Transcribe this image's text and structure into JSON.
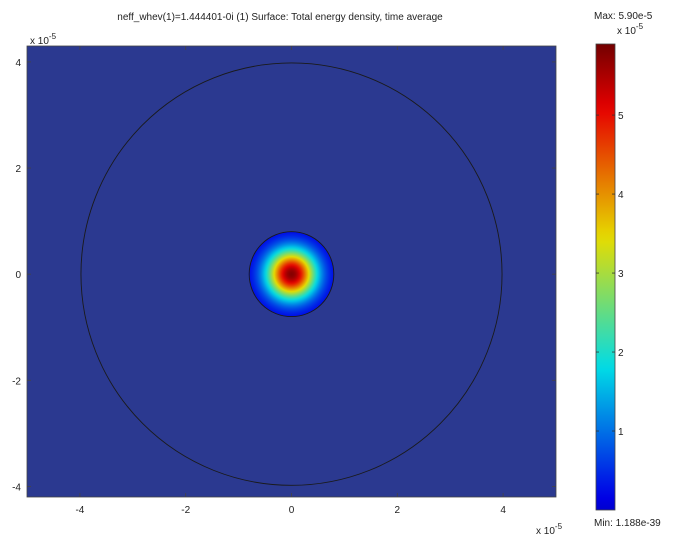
{
  "chart_data": {
    "type": "heatmap",
    "title": "neff_whev(1)=1.444401-0i (1)   Surface: Total energy density, time average",
    "x_exponent_label": "x 10",
    "x_exponent_power": "-5",
    "y_exponent_label": "x 10",
    "y_exponent_power": "-5",
    "xlim": [
      -5e-05,
      5e-05
    ],
    "ylim": [
      -4.2e-05,
      4.3e-05
    ],
    "xticks": [
      -4e-05,
      -2e-05,
      0,
      2e-05,
      4e-05
    ],
    "xtick_labels": [
      "-4",
      "-2",
      "0",
      "2",
      "4"
    ],
    "yticks": [
      -4e-05,
      -2e-05,
      0,
      2e-05,
      4e-05
    ],
    "ytick_labels": [
      "-4",
      "-2",
      "0",
      "2",
      "4"
    ],
    "field": {
      "center": [
        0,
        0
      ],
      "peak_value": 5.9e-05,
      "half_width": 3.5e-06,
      "background_value": 1.188e-39
    },
    "boundaries": [
      {
        "shape": "circle",
        "center": [
          0,
          0
        ],
        "radius": 8e-06
      },
      {
        "shape": "circle",
        "center": [
          0,
          0
        ],
        "radius": 3.98e-05
      }
    ],
    "colorbar": {
      "max_label": "Max: 5.90e-5",
      "min_label": "Min: 1.188e-39",
      "exponent_label": "x 10",
      "exponent_power": "-5",
      "max_value": 5.9e-05,
      "min_value": 1.188e-39,
      "ticks": [
        1e-05,
        2e-05,
        3e-05,
        4e-05,
        5e-05
      ],
      "tick_labels": [
        "1",
        "2",
        "3",
        "4",
        "5"
      ],
      "colormap": "jet"
    },
    "colors": {
      "background_fill": "#2b3990",
      "boundary": "#1a1a1a"
    }
  }
}
